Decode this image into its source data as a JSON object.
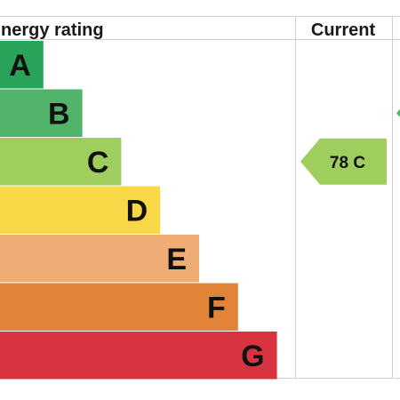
{
  "header": {
    "rating_label": "nergy rating",
    "current_label": "Current"
  },
  "chart_data": {
    "type": "bar",
    "categories": [
      "A",
      "B",
      "C",
      "D",
      "E",
      "F",
      "G"
    ],
    "band_colors": [
      "#2aa35a",
      "#52b36a",
      "#9fcd5e",
      "#f9d847",
      "#efad75",
      "#e28437",
      "#d8343f"
    ],
    "relative_lengths": [
      1,
      2,
      3,
      4,
      5,
      6,
      7
    ],
    "current": {
      "score": 78,
      "band": "C",
      "label": "78 C",
      "color": "#9fcd5e"
    },
    "potential_color": "#52b36a"
  }
}
